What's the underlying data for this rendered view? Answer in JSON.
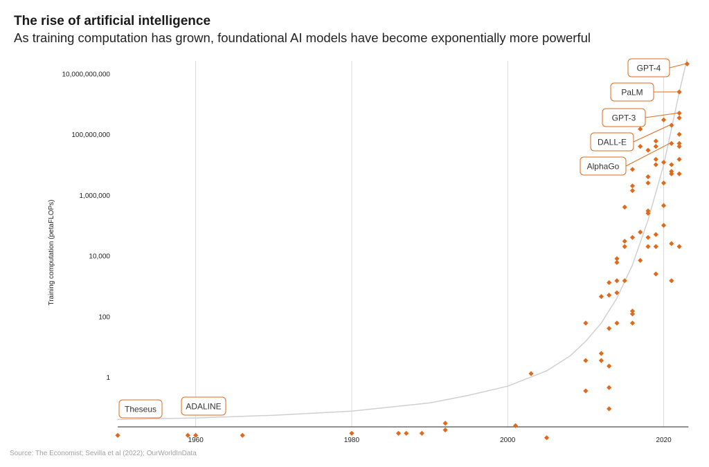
{
  "header": {
    "title": "The rise of artificial intelligence",
    "subtitle": "As training computation has grown, foundational AI models have become exponentially more powerful"
  },
  "footer": {
    "source": "Source: The Economist; Sevilla et al (2022); OurWorldInData"
  },
  "colors": {
    "accent": "#e06a1b",
    "grid": "#d9d9d9",
    "trend": "#cfcfcf",
    "axis": "#222222"
  },
  "chart_data": {
    "type": "scatter",
    "title": "The rise of artificial intelligence",
    "subtitle": "As training computation has grown, foundational AI models have become exponentially more powerful",
    "xlabel": "",
    "ylabel": "Training computation (petaFLOPs)",
    "xlim": [
      1950,
      2023
    ],
    "ylim": [
      0.01,
      30000000000
    ],
    "y_scale": "log",
    "grid": "vertical",
    "x_ticks": [
      {
        "value": 1960,
        "label": "1960"
      },
      {
        "value": 1980,
        "label": "1980"
      },
      {
        "value": 2000,
        "label": "2000"
      },
      {
        "value": 2020,
        "label": "2020"
      }
    ],
    "y_ticks": [
      {
        "value": 1,
        "label": "1"
      },
      {
        "value": 100,
        "label": "100"
      },
      {
        "value": 10000,
        "label": "10,000"
      },
      {
        "value": 1000000,
        "label": "1,000,000"
      },
      {
        "value": 100000000,
        "label": "100,000,000"
      },
      {
        "value": 10000000000,
        "label": "10,000,000,000"
      }
    ],
    "trend": [
      {
        "x": 1950,
        "y": 0.04
      },
      {
        "x": 1960,
        "y": 0.045
      },
      {
        "x": 1970,
        "y": 0.055
      },
      {
        "x": 1980,
        "y": 0.075
      },
      {
        "x": 1990,
        "y": 0.14
      },
      {
        "x": 1995,
        "y": 0.25
      },
      {
        "x": 2000,
        "y": 0.5
      },
      {
        "x": 2005,
        "y": 1.6
      },
      {
        "x": 2008,
        "y": 5
      },
      {
        "x": 2010,
        "y": 15
      },
      {
        "x": 2012,
        "y": 60
      },
      {
        "x": 2014,
        "y": 400
      },
      {
        "x": 2016,
        "y": 5000
      },
      {
        "x": 2018,
        "y": 150000
      },
      {
        "x": 2020,
        "y": 10000000
      },
      {
        "x": 2021,
        "y": 150000000
      },
      {
        "x": 2022,
        "y": 2500000000
      },
      {
        "x": 2023,
        "y": 30000000000
      }
    ],
    "points": [
      {
        "x": 1950,
        "y": 0.012
      },
      {
        "x": 1959,
        "y": 0.012
      },
      {
        "x": 1960,
        "y": 0.012
      },
      {
        "x": 1966,
        "y": 0.012
      },
      {
        "x": 1980,
        "y": 0.014
      },
      {
        "x": 1986,
        "y": 0.014
      },
      {
        "x": 1987,
        "y": 0.014
      },
      {
        "x": 1989,
        "y": 0.014
      },
      {
        "x": 1992,
        "y": 0.018
      },
      {
        "x": 1992,
        "y": 0.03
      },
      {
        "x": 2001,
        "y": 0.025
      },
      {
        "x": 2003,
        "y": 1.3
      },
      {
        "x": 2005,
        "y": 0.01
      },
      {
        "x": 2010,
        "y": 3.5
      },
      {
        "x": 2010,
        "y": 0.35
      },
      {
        "x": 2010,
        "y": 60
      },
      {
        "x": 2012,
        "y": 3.5
      },
      {
        "x": 2012,
        "y": 6
      },
      {
        "x": 2012,
        "y": 450
      },
      {
        "x": 2013,
        "y": 2.3
      },
      {
        "x": 2013,
        "y": 0.45
      },
      {
        "x": 2013,
        "y": 0.09
      },
      {
        "x": 2013,
        "y": 40
      },
      {
        "x": 2013,
        "y": 500
      },
      {
        "x": 2013,
        "y": 1300
      },
      {
        "x": 2014,
        "y": 60
      },
      {
        "x": 2014,
        "y": 1500
      },
      {
        "x": 2014,
        "y": 6000
      },
      {
        "x": 2014,
        "y": 8000
      },
      {
        "x": 2014,
        "y": 600
      },
      {
        "x": 2015,
        "y": 1500
      },
      {
        "x": 2015,
        "y": 20000
      },
      {
        "x": 2015,
        "y": 30000
      },
      {
        "x": 2015,
        "y": 400000
      },
      {
        "x": 2016,
        "y": 60
      },
      {
        "x": 2016,
        "y": 120
      },
      {
        "x": 2016,
        "y": 150
      },
      {
        "x": 2016,
        "y": 40000
      },
      {
        "x": 2016,
        "y": 1400000
      },
      {
        "x": 2016,
        "y": 2000000
      },
      {
        "x": 2016,
        "y": 7000000
      },
      {
        "x": 2017,
        "y": 7000
      },
      {
        "x": 2017,
        "y": 60000
      },
      {
        "x": 2017,
        "y": 40000000
      },
      {
        "x": 2017,
        "y": 150000000
      },
      {
        "x": 2018,
        "y": 20000
      },
      {
        "x": 2018,
        "y": 40000
      },
      {
        "x": 2018,
        "y": 250000
      },
      {
        "x": 2018,
        "y": 300000
      },
      {
        "x": 2018,
        "y": 2500000
      },
      {
        "x": 2018,
        "y": 4000000
      },
      {
        "x": 2018,
        "y": 30000000
      },
      {
        "x": 2019,
        "y": 2500
      },
      {
        "x": 2019,
        "y": 20000
      },
      {
        "x": 2019,
        "y": 50000
      },
      {
        "x": 2019,
        "y": 10000000
      },
      {
        "x": 2019,
        "y": 15000000
      },
      {
        "x": 2019,
        "y": 40000000
      },
      {
        "x": 2019,
        "y": 60000000
      },
      {
        "x": 2020,
        "y": 100000
      },
      {
        "x": 2020,
        "y": 450000
      },
      {
        "x": 2020,
        "y": 2500000
      },
      {
        "x": 2020,
        "y": 12000000
      },
      {
        "x": 2020,
        "y": 300000000
      },
      {
        "x": 2021,
        "y": 1500
      },
      {
        "x": 2021,
        "y": 25000
      },
      {
        "x": 2021,
        "y": 5000000
      },
      {
        "x": 2021,
        "y": 6000000
      },
      {
        "x": 2021,
        "y": 10000000
      },
      {
        "x": 2021,
        "y": 50000000
      },
      {
        "x": 2021,
        "y": 200000000
      },
      {
        "x": 2022,
        "y": 20000
      },
      {
        "x": 2022,
        "y": 5000000
      },
      {
        "x": 2022,
        "y": 15000000
      },
      {
        "x": 2022,
        "y": 40000000
      },
      {
        "x": 2022,
        "y": 50000000
      },
      {
        "x": 2022,
        "y": 100000000
      },
      {
        "x": 2022,
        "y": 350000000
      },
      {
        "x": 2022,
        "y": 500000000
      },
      {
        "x": 2022,
        "y": 2500000000
      },
      {
        "x": 2023,
        "y": 21000000000
      }
    ],
    "annotations": [
      {
        "label": "Theseus",
        "x": 1950,
        "y": 0.012
      },
      {
        "label": "ADALINE",
        "x": 1960,
        "y": 0.012
      },
      {
        "label": "GPT-4",
        "x": 2023,
        "y": 21000000000
      },
      {
        "label": "PaLM",
        "x": 2022,
        "y": 2500000000
      },
      {
        "label": "GPT-3",
        "x": 2022,
        "y": 500000000
      },
      {
        "label": "DALL-E",
        "x": 2021,
        "y": 200000000
      },
      {
        "label": "AlphaGo",
        "x": 2021,
        "y": 50000000
      }
    ]
  }
}
